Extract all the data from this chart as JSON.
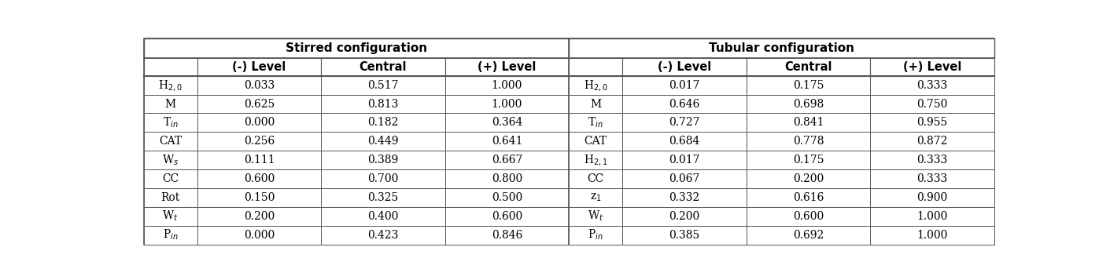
{
  "stirred_header": "Stirred configuration",
  "tubular_header": "Tubular configuration",
  "col_headers": [
    "(-) Level",
    "Central",
    "(+) Level"
  ],
  "stirred_rows": [
    {
      "label": "H$_{2,0}$",
      "values": [
        "0.033",
        "0.517",
        "1.000"
      ]
    },
    {
      "label": "M",
      "values": [
        "0.625",
        "0.813",
        "1.000"
      ]
    },
    {
      "label": "T$_{in}$",
      "values": [
        "0.000",
        "0.182",
        "0.364"
      ]
    },
    {
      "label": "CAT",
      "values": [
        "0.256",
        "0.449",
        "0.641"
      ]
    },
    {
      "label": "W$_{s}$",
      "values": [
        "0.111",
        "0.389",
        "0.667"
      ]
    },
    {
      "label": "CC",
      "values": [
        "0.600",
        "0.700",
        "0.800"
      ]
    },
    {
      "label": "Rot",
      "values": [
        "0.150",
        "0.325",
        "0.500"
      ]
    },
    {
      "label": "W$_{t}$",
      "values": [
        "0.200",
        "0.400",
        "0.600"
      ]
    },
    {
      "label": "P$_{in}$",
      "values": [
        "0.000",
        "0.423",
        "0.846"
      ]
    }
  ],
  "tubular_rows": [
    {
      "label": "H$_{2,0}$",
      "values": [
        "0.017",
        "0.175",
        "0.333"
      ]
    },
    {
      "label": "M",
      "values": [
        "0.646",
        "0.698",
        "0.750"
      ]
    },
    {
      "label": "T$_{in}$",
      "values": [
        "0.727",
        "0.841",
        "0.955"
      ]
    },
    {
      "label": "CAT",
      "values": [
        "0.684",
        "0.778",
        "0.872"
      ]
    },
    {
      "label": "H$_{2,1}$",
      "values": [
        "0.017",
        "0.175",
        "0.333"
      ]
    },
    {
      "label": "CC",
      "values": [
        "0.067",
        "0.200",
        "0.333"
      ]
    },
    {
      "label": "z$_{1}$",
      "values": [
        "0.332",
        "0.616",
        "0.900"
      ]
    },
    {
      "label": "W$_{t}$",
      "values": [
        "0.200",
        "0.600",
        "1.000"
      ]
    },
    {
      "label": "P$_{in}$",
      "values": [
        "0.385",
        "0.692",
        "1.000"
      ]
    }
  ],
  "bg_color": "#ffffff",
  "text_color": "#000000",
  "line_color": "#555555",
  "data_fontsize": 10.0,
  "header_fontsize": 10.5,
  "header1_fontsize": 11.0
}
